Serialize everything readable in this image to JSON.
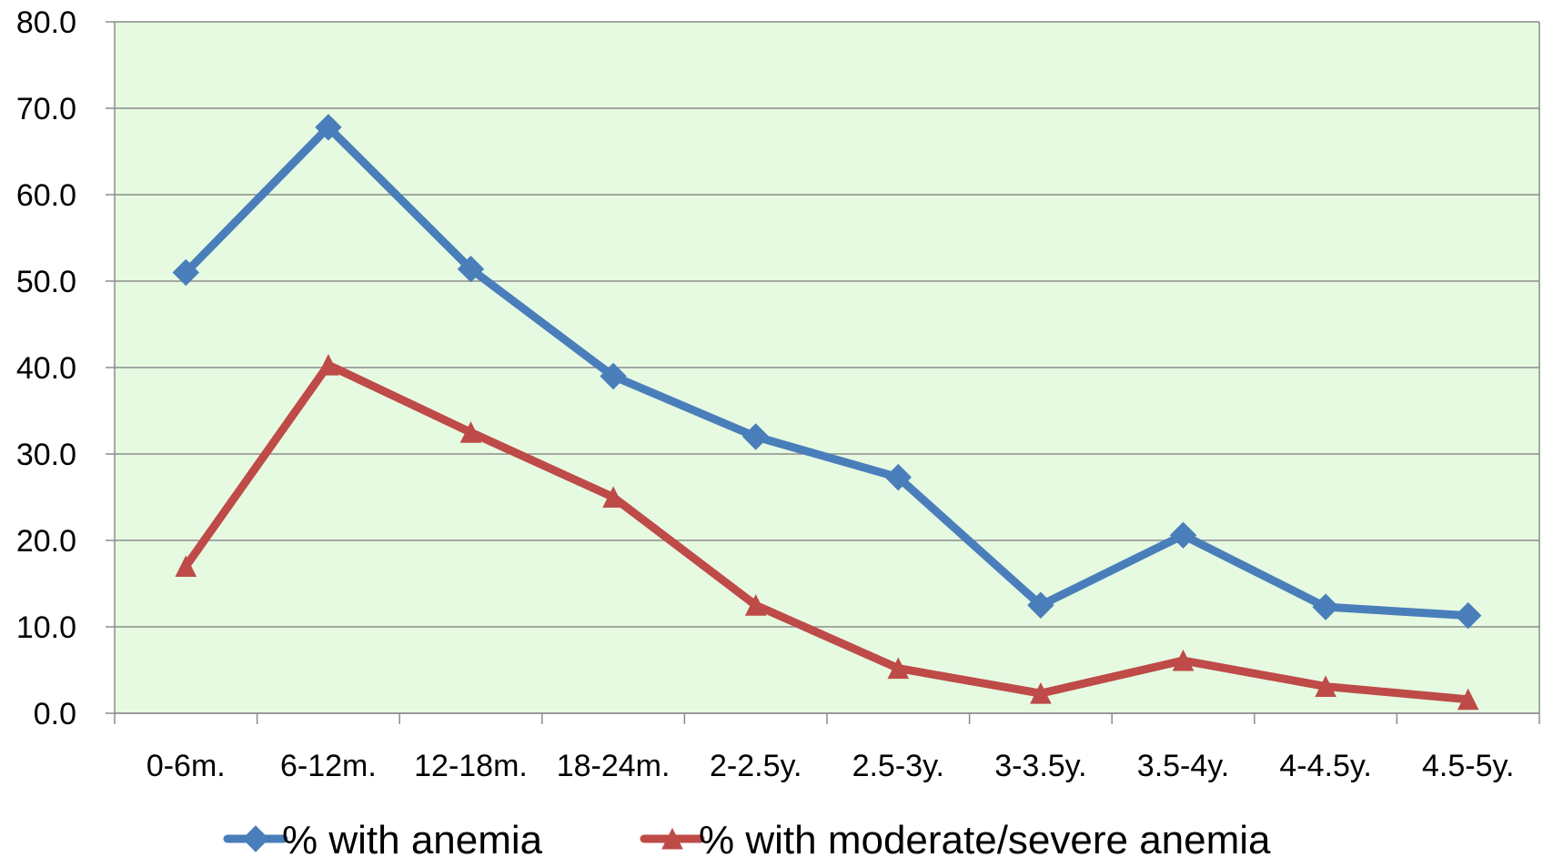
{
  "chart_data": {
    "type": "line",
    "categories": [
      "0-6m.",
      "6-12m.",
      "12-18m.",
      "18-24m.",
      "2-2.5y.",
      "2.5-3y.",
      "3-3.5y.",
      "3.5-4y.",
      "4-4.5y.",
      "4.5-5y."
    ],
    "series": [
      {
        "name": "% with anemia",
        "color": "#4a7ebb",
        "marker": "diamond",
        "values": [
          51.0,
          67.8,
          51.4,
          39.0,
          32.0,
          27.3,
          12.5,
          20.6,
          12.3,
          11.3
        ]
      },
      {
        "name": "% with moderate/severe anemia",
        "color": "#be4b48",
        "marker": "triangle",
        "values": [
          17.0,
          40.3,
          32.5,
          25.0,
          12.5,
          5.2,
          2.3,
          6.1,
          3.1,
          1.6
        ]
      }
    ],
    "ylim": [
      0,
      80
    ],
    "yticks": [
      "0.0",
      "10.0",
      "20.0",
      "30.0",
      "40.0",
      "50.0",
      "60.0",
      "70.0",
      "80.0"
    ],
    "ytick_values": [
      0,
      10,
      20,
      30,
      40,
      50,
      60,
      70,
      80
    ],
    "grid": true,
    "plot_background": "#e6fae1",
    "legend": "bottom"
  }
}
